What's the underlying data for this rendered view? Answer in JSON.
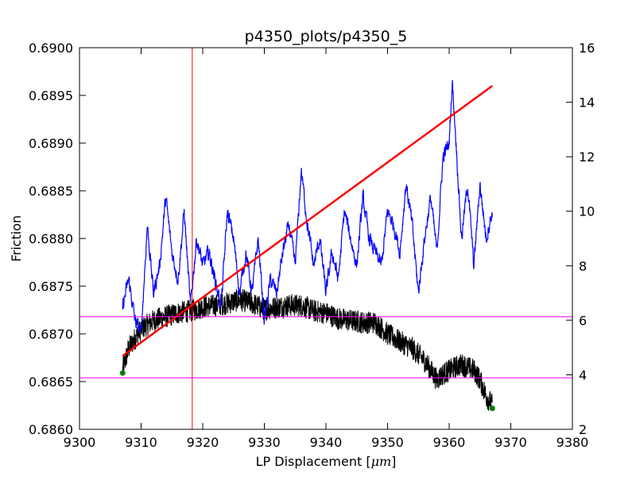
{
  "chart_data": {
    "type": "line",
    "title": "p4350_plots/p4350_5",
    "xlabel": "LP Displacement [",
    "xlabel_unit": "μm",
    "xlabel_close": "]",
    "ylabel": "Friction",
    "xlim": [
      9300,
      9380
    ],
    "ylim": [
      0.686,
      0.69
    ],
    "y2lim": [
      2,
      16
    ],
    "x_ticks": [
      "9300",
      "9310",
      "9320",
      "9330",
      "9340",
      "9350",
      "9360",
      "9370",
      "9380"
    ],
    "y_ticks": [
      "0.6860",
      "0.6865",
      "0.6870",
      "0.6875",
      "0.6880",
      "0.6885",
      "0.6890",
      "0.6895",
      "0.6900"
    ],
    "y2_ticks": [
      "2",
      "4",
      "6",
      "8",
      "10",
      "12",
      "14",
      "16"
    ],
    "grid": false,
    "colors": {
      "friction": "#000000",
      "right_axis_series": "#0000ff",
      "fit": "#ff0000",
      "vline": "#ff0000",
      "hlines": "#ff00ff",
      "endpoints": "#008000"
    },
    "series": [
      {
        "axis": "left",
        "color": "#000000",
        "noise": 0.00012,
        "x": [
          9307.0,
          9308.0,
          9310.0,
          9312.0,
          9314.0,
          9316.0,
          9318.0,
          9320.0,
          9322.0,
          9324.0,
          9326.0,
          9328.0,
          9330.0,
          9332.0,
          9334.0,
          9336.0,
          9338.0,
          9340.0,
          9342.0,
          9344.0,
          9346.0,
          9348.0,
          9350.0,
          9352.0,
          9354.0,
          9356.0,
          9358.0,
          9359.0,
          9361.0,
          9362.0,
          9364.0,
          9365.0,
          9366.0,
          9367.0
        ],
        "y": [
          0.68662,
          0.68685,
          0.68705,
          0.68714,
          0.68718,
          0.68722,
          0.68724,
          0.68728,
          0.6873,
          0.68732,
          0.68736,
          0.68732,
          0.68726,
          0.68728,
          0.6873,
          0.6873,
          0.68724,
          0.68722,
          0.68716,
          0.68714,
          0.68712,
          0.68712,
          0.687,
          0.68692,
          0.68685,
          0.68672,
          0.68652,
          0.68658,
          0.68665,
          0.68668,
          0.68662,
          0.68652,
          0.68635,
          0.68625
        ]
      },
      {
        "axis": "right",
        "color": "#0000ff",
        "noise": 0.5,
        "x": [
          9307.0,
          9308.0,
          9309.0,
          9310.0,
          9311.0,
          9312.0,
          9313.0,
          9314.0,
          9315.0,
          9316.0,
          9317.0,
          9318.0,
          9319.0,
          9320.0,
          9321.0,
          9322.0,
          9323.0,
          9324.0,
          9325.0,
          9326.0,
          9327.0,
          9328.0,
          9329.0,
          9330.0,
          9331.0,
          9332.0,
          9333.0,
          9334.0,
          9335.0,
          9336.0,
          9337.0,
          9338.0,
          9339.0,
          9340.0,
          9341.0,
          9342.0,
          9343.0,
          9344.0,
          9345.0,
          9346.0,
          9347.0,
          9348.0,
          9349.0,
          9350.0,
          9351.0,
          9352.0,
          9353.0,
          9354.0,
          9355.0,
          9356.0,
          9357.0,
          9358.0,
          9359.0,
          9360.0,
          9360.5,
          9361.0,
          9362.0,
          9363.0,
          9364.0,
          9365.0,
          9366.0,
          9367.0
        ],
        "y": [
          6.5,
          7.5,
          6.0,
          5.5,
          9.5,
          7.0,
          8.0,
          10.5,
          8.5,
          7.5,
          10.0,
          6.5,
          9.0,
          8.0,
          8.5,
          7.5,
          6.5,
          10.0,
          9.0,
          7.0,
          8.5,
          7.0,
          9.0,
          6.0,
          7.5,
          7.0,
          8.5,
          9.5,
          8.0,
          11.5,
          9.5,
          8.0,
          9.0,
          7.0,
          8.5,
          7.5,
          10.0,
          9.0,
          8.0,
          10.5,
          9.0,
          8.5,
          8.0,
          10.0,
          9.5,
          8.5,
          11.0,
          9.5,
          7.0,
          9.0,
          10.5,
          8.5,
          12.0,
          12.5,
          14.8,
          13.0,
          9.0,
          11.0,
          8.0,
          11.0,
          9.0,
          10.0
        ]
      }
    ],
    "fit_line": {
      "axis": "left",
      "x": [
        9307.0,
        9367.0
      ],
      "y": [
        0.68677,
        0.6896
      ]
    },
    "vline_x": 9318.3,
    "hlines_y": [
      0.68654,
      0.68718
    ],
    "endpoints": {
      "axis": "left",
      "x": [
        9307.0,
        9367.0
      ],
      "y": [
        0.68659,
        0.68622
      ]
    }
  }
}
